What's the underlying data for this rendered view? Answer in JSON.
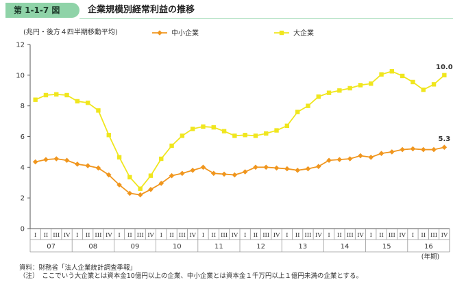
{
  "header": {
    "figure_number": "第 1-1-7 図",
    "title": "企業規模別経常利益の推移"
  },
  "colors": {
    "badge": "#8fd3a8",
    "small_medium": "#f0961e",
    "large": "#f0e61e",
    "axis": "#555555"
  },
  "chart_data": {
    "type": "line",
    "unit_label": "(兆円・後方４四半期移動平均)",
    "ylim": [
      0,
      12
    ],
    "yticks": [
      "0",
      "2",
      "4",
      "6",
      "8",
      "10",
      "12"
    ],
    "x_quarters": [
      "I",
      "II",
      "III",
      "IV",
      "I",
      "II",
      "III",
      "IV",
      "I",
      "II",
      "III",
      "IV",
      "I",
      "II",
      "III",
      "IV",
      "I",
      "II",
      "III",
      "IV",
      "I",
      "II",
      "III",
      "IV",
      "I",
      "II",
      "III",
      "IV",
      "I",
      "II",
      "III",
      "IV",
      "I",
      "II",
      "III",
      "IV",
      "I",
      "II",
      "III",
      "IV"
    ],
    "x_years": [
      "07",
      "08",
      "09",
      "10",
      "11",
      "12",
      "13",
      "14",
      "15",
      "16"
    ],
    "x_axis_note": "(年期)",
    "grid": false,
    "legend_position": "top",
    "series": [
      {
        "name": "中小企業",
        "marker": "diamond",
        "values": [
          4.35,
          4.5,
          4.55,
          4.45,
          4.2,
          4.1,
          3.95,
          3.5,
          2.85,
          2.3,
          2.2,
          2.55,
          2.95,
          3.45,
          3.6,
          3.8,
          4.0,
          3.6,
          3.55,
          3.5,
          3.7,
          4.0,
          4.0,
          3.95,
          3.9,
          3.8,
          3.9,
          4.05,
          4.45,
          4.5,
          4.55,
          4.75,
          4.65,
          4.9,
          5.0,
          5.15,
          5.2,
          5.15,
          5.15,
          5.3
        ],
        "end_label": "5.3"
      },
      {
        "name": "大企業",
        "marker": "square",
        "values": [
          8.4,
          8.7,
          8.75,
          8.7,
          8.3,
          8.2,
          7.7,
          6.1,
          4.65,
          3.35,
          2.6,
          3.45,
          4.55,
          5.4,
          6.05,
          6.5,
          6.65,
          6.6,
          6.35,
          6.05,
          6.1,
          6.05,
          6.2,
          6.4,
          6.7,
          7.6,
          8.0,
          8.6,
          8.85,
          9.0,
          9.15,
          9.35,
          9.45,
          10.05,
          10.25,
          9.95,
          9.55,
          9.05,
          9.4,
          10.0
        ],
        "end_label": "10.0"
      }
    ]
  },
  "notes": [
    "資料：財務省「法人企業統計調査季報」",
    "（注）　ここでいう大企業とは資本金10億円以上の企業、中小企業とは資本金１千万円以上１億円未満の企業とする。"
  ]
}
